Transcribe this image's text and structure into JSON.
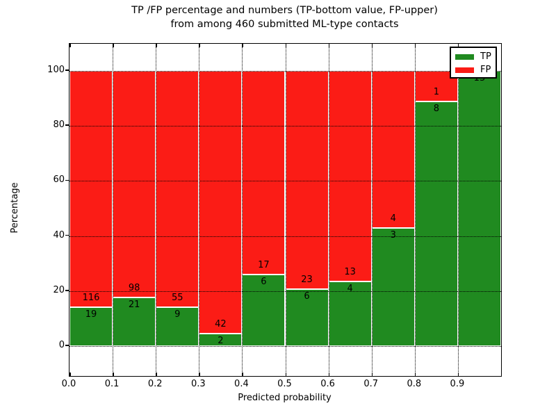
{
  "figure": {
    "title_line1": "TP /FP percentage and numbers (TP-bottom value, FP-upper)",
    "title_line2": "from among 460 submitted ML-type contacts"
  },
  "chart_data": {
    "type": "bar",
    "stacked": true,
    "normalized": "each bin scaled to 100%",
    "title": "TP /FP percentage and numbers (TP-bottom value, FP-upper) from among 460 submitted ML-type contacts",
    "xlabel": "Predicted probability",
    "ylabel": "Percentage",
    "total_contacts": 460,
    "bin_edges": [
      0.0,
      0.1,
      0.2,
      0.3,
      0.4,
      0.5,
      0.6,
      0.7,
      0.8,
      0.9,
      1.0
    ],
    "x_tick_labels": [
      "0.0",
      "0.1",
      "0.2",
      "0.3",
      "0.4",
      "0.5",
      "0.6",
      "0.7",
      "0.8",
      "0.9"
    ],
    "y_ticks": [
      0,
      20,
      40,
      60,
      80,
      100
    ],
    "ylim": [
      0,
      100
    ],
    "grid": true,
    "series": [
      {
        "name": "TP",
        "color": "#208a20",
        "counts": [
          19,
          21,
          9,
          2,
          6,
          6,
          4,
          3,
          8,
          13
        ]
      },
      {
        "name": "FP",
        "color": "#fb1c16",
        "counts": [
          116,
          98,
          55,
          42,
          17,
          23,
          13,
          4,
          1,
          0
        ]
      }
    ],
    "tp_percent": [
      14.1,
      17.6,
      14.1,
      4.5,
      26.1,
      20.7,
      23.5,
      42.9,
      88.9,
      100.0
    ],
    "legend": {
      "position": "upper right",
      "entries": [
        {
          "label": "TP",
          "color": "#208a20"
        },
        {
          "label": "FP",
          "color": "#fb1c16"
        }
      ]
    }
  }
}
